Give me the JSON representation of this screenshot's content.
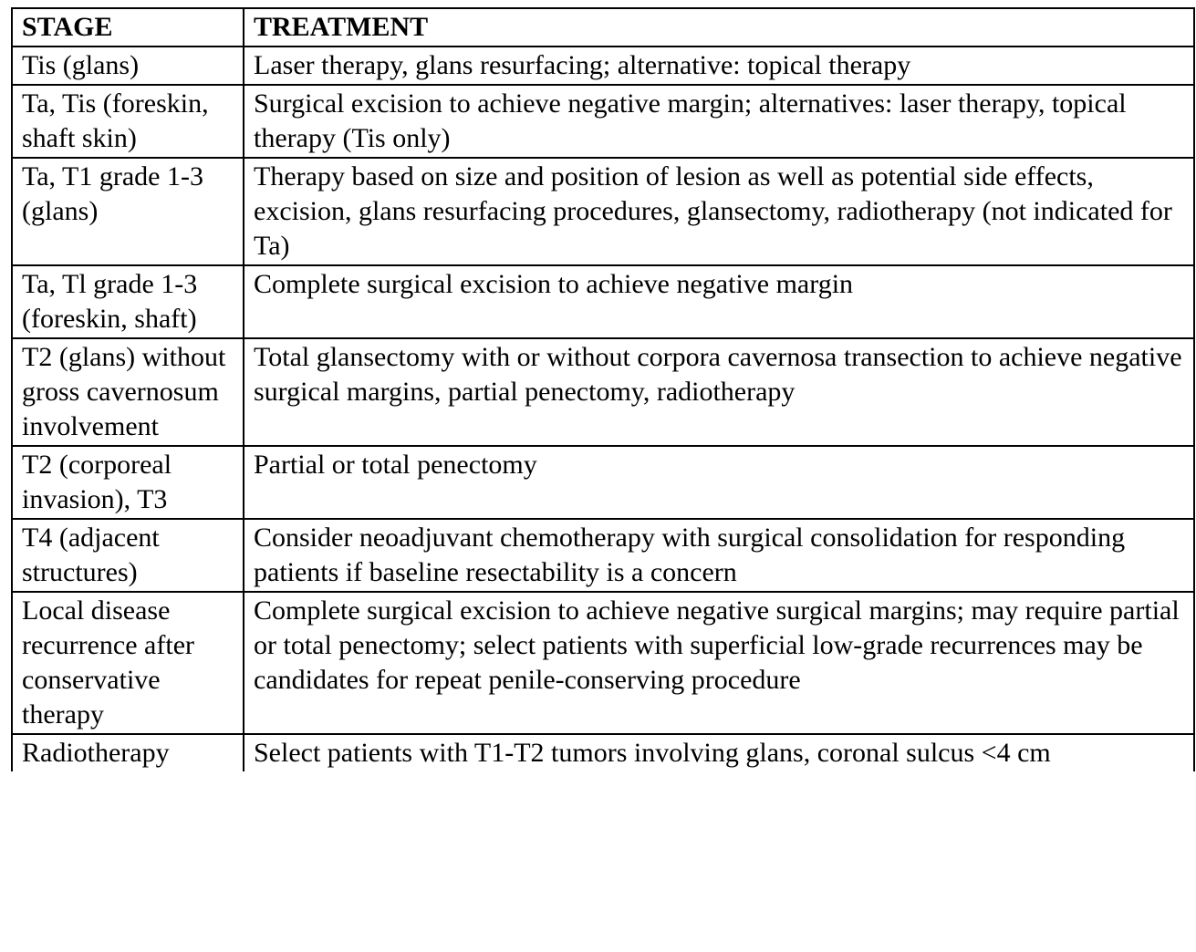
{
  "table": {
    "headers": {
      "stage": "STAGE",
      "treatment": "TREATMENT"
    },
    "rows": [
      {
        "stage": "Tis (glans)",
        "treatment": "Laser therapy, glans resurfacing; alternative: topical therapy"
      },
      {
        "stage": "Ta, Tis (foreskin, shaft skin)",
        "treatment": "Surgical excision to achieve negative margin; alternatives: laser therapy, topical therapy (Tis only)"
      },
      {
        "stage": "Ta, T1 grade 1-3 (glans)",
        "treatment": "Therapy based on size and position of lesion as well as potential side effects, excision, glans resurfacing procedures, glansectomy, radiotherapy (not indicated for Ta)"
      },
      {
        "stage": "Ta, Tl grade 1-3 (foreskin, shaft)",
        "treatment": "Complete surgical excision to achieve negative margin"
      },
      {
        "stage": "T2 (glans) without gross cavernosum involvement",
        "treatment": "Total glansectomy with or without corpora cavernosa transection to achieve negative surgical margins, partial penectomy, radiotherapy"
      },
      {
        "stage": "T2 (corporeal invasion), T3",
        "treatment": "Partial or total penectomy"
      },
      {
        "stage": "T4 (adjacent structures)",
        "treatment": "Consider neoadjuvant chemotherapy with surgical consolidation for responding patients if baseline resectability is a concern"
      },
      {
        "stage": "Local disease recurrence after conservative therapy",
        "treatment": "Complete surgical excision to achieve negative surgical margins; may require partial or total penectomy; select patients with superficial low-grade recurrences may be candidates for repeat penile-conserving procedure"
      },
      {
        "stage": "Radiotherapy",
        "treatment": "Select patients with T1-T2 tumors involving glans, coronal sulcus <4 cm"
      }
    ]
  }
}
